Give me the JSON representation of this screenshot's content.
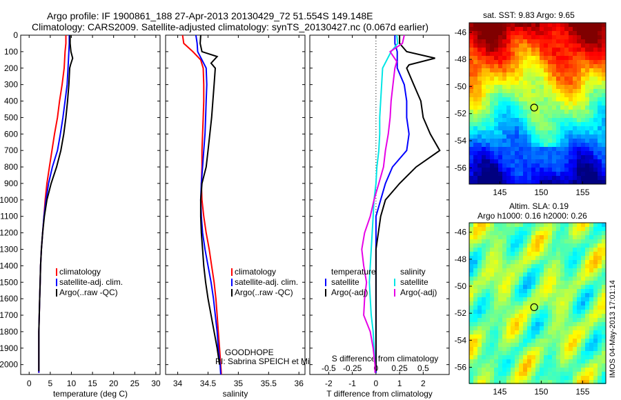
{
  "title": {
    "line1": "Argo profile: IF 1900861_188 27-Apr-2013 20130429_72 51.554S 149.148E",
    "line2": "Climatology: CARS2009. Satellite-adjusted climatology: synTS_20130427.nc (0.067d earlier)"
  },
  "colors": {
    "climatology": "#ff0000",
    "satellite": "#0000ff",
    "argo": "#000000",
    "sat_salinity": "#00e5e5",
    "argo_salinity": "#e600e6"
  },
  "chart_data": [
    {
      "type": "line",
      "xlabel": "temperature (deg C)",
      "xlim": [
        -2,
        31
      ],
      "ylim": [
        2060,
        0
      ],
      "x_ticks": [
        0,
        5,
        10,
        15,
        20,
        25,
        30
      ],
      "y_ticks": [
        0,
        100,
        200,
        300,
        400,
        500,
        600,
        700,
        800,
        900,
        1000,
        1100,
        1200,
        1300,
        1400,
        1500,
        1600,
        1700,
        1800,
        1900,
        2000
      ],
      "legend_position": "middle-right",
      "series": [
        {
          "name": "climatology",
          "color": "#ff0000",
          "points": [
            [
              8.7,
              0
            ],
            [
              8.7,
              50
            ],
            [
              8.5,
              100
            ],
            [
              8.3,
              200
            ],
            [
              7.8,
              300
            ],
            [
              7.2,
              400
            ],
            [
              6.7,
              500
            ],
            [
              6.0,
              600
            ],
            [
              5.4,
              700
            ],
            [
              4.8,
              800
            ],
            [
              4.2,
              900
            ],
            [
              3.8,
              1000
            ],
            [
              3.5,
              1100
            ],
            [
              3.2,
              1200
            ],
            [
              2.9,
              1300
            ],
            [
              2.7,
              1400
            ],
            [
              2.6,
              1500
            ],
            [
              2.5,
              1600
            ],
            [
              2.4,
              1700
            ],
            [
              2.3,
              1800
            ],
            [
              2.3,
              1900
            ],
            [
              2.3,
              2000
            ],
            [
              2.3,
              2050
            ]
          ]
        },
        {
          "name": "satellite-adj. clim.",
          "color": "#0000ff",
          "points": [
            [
              9.5,
              0
            ],
            [
              9.5,
              50
            ],
            [
              9.4,
              100
            ],
            [
              9.2,
              200
            ],
            [
              9.0,
              300
            ],
            [
              8.5,
              400
            ],
            [
              8.0,
              500
            ],
            [
              7.4,
              600
            ],
            [
              6.7,
              700
            ],
            [
              5.5,
              800
            ],
            [
              4.6,
              900
            ],
            [
              4.0,
              1000
            ],
            [
              3.5,
              1100
            ],
            [
              3.2,
              1200
            ],
            [
              2.9,
              1300
            ],
            [
              2.7,
              1400
            ],
            [
              2.6,
              1500
            ],
            [
              2.5,
              1600
            ],
            [
              2.4,
              1700
            ],
            [
              2.3,
              1800
            ],
            [
              2.3,
              1900
            ],
            [
              2.3,
              2000
            ],
            [
              2.3,
              2050
            ]
          ]
        },
        {
          "name": "Argo(..raw -QC)",
          "color": "#000000",
          "points": [
            [
              9.7,
              0
            ],
            [
              9.7,
              50
            ],
            [
              9.9,
              100
            ],
            [
              10.3,
              140
            ],
            [
              9.8,
              180
            ],
            [
              9.6,
              200
            ],
            [
              9.4,
              300
            ],
            [
              9.1,
              400
            ],
            [
              8.7,
              500
            ],
            [
              8.2,
              600
            ],
            [
              7.5,
              700
            ],
            [
              6.5,
              800
            ],
            [
              5.2,
              900
            ],
            [
              4.2,
              1000
            ],
            [
              3.6,
              1100
            ],
            [
              3.2,
              1200
            ],
            [
              2.9,
              1300
            ],
            [
              2.7,
              1400
            ],
            [
              2.6,
              1500
            ],
            [
              2.5,
              1600
            ],
            [
              2.4,
              1700
            ],
            [
              2.3,
              1800
            ],
            [
              2.3,
              1900
            ],
            [
              2.3,
              2000
            ],
            [
              2.3,
              2040
            ]
          ]
        }
      ]
    },
    {
      "type": "line",
      "xlabel": "salinity",
      "xlim": [
        33.8,
        36.1
      ],
      "ylim": [
        2060,
        0
      ],
      "x_ticks": [
        34,
        34.5,
        35,
        35.5,
        36
      ],
      "legend_position": "middle-right",
      "series": [
        {
          "name": "climatology",
          "color": "#ff0000",
          "points": [
            [
              34.08,
              0
            ],
            [
              34.1,
              50
            ],
            [
              34.25,
              100
            ],
            [
              34.38,
              150
            ],
            [
              34.42,
              200
            ],
            [
              34.43,
              300
            ],
            [
              34.43,
              400
            ],
            [
              34.42,
              500
            ],
            [
              34.41,
              600
            ],
            [
              34.4,
              700
            ],
            [
              34.4,
              800
            ],
            [
              34.39,
              900
            ],
            [
              34.4,
              1000
            ],
            [
              34.43,
              1100
            ],
            [
              34.47,
              1200
            ],
            [
              34.52,
              1300
            ],
            [
              34.56,
              1400
            ],
            [
              34.6,
              1500
            ],
            [
              34.63,
              1600
            ],
            [
              34.65,
              1700
            ],
            [
              34.67,
              1800
            ],
            [
              34.69,
              1900
            ],
            [
              34.71,
              2000
            ],
            [
              34.72,
              2060
            ]
          ]
        },
        {
          "name": "satellite-adj. clim.",
          "color": "#0000ff",
          "points": [
            [
              34.3,
              0
            ],
            [
              34.32,
              50
            ],
            [
              34.33,
              100
            ],
            [
              34.4,
              150
            ],
            [
              34.47,
              200
            ],
            [
              34.48,
              300
            ],
            [
              34.47,
              400
            ],
            [
              34.46,
              500
            ],
            [
              34.45,
              600
            ],
            [
              34.43,
              700
            ],
            [
              34.41,
              800
            ],
            [
              34.39,
              900
            ],
            [
              34.38,
              1000
            ],
            [
              34.39,
              1100
            ],
            [
              34.41,
              1200
            ],
            [
              34.45,
              1300
            ],
            [
              34.5,
              1400
            ],
            [
              34.55,
              1500
            ],
            [
              34.59,
              1600
            ],
            [
              34.62,
              1700
            ],
            [
              34.65,
              1800
            ],
            [
              34.67,
              1900
            ],
            [
              34.7,
              2000
            ],
            [
              34.71,
              2060
            ]
          ]
        },
        {
          "name": "Argo(..raw -QC)",
          "color": "#000000",
          "points": [
            [
              34.38,
              0
            ],
            [
              34.37,
              50
            ],
            [
              34.4,
              100
            ],
            [
              34.65,
              130
            ],
            [
              34.55,
              170
            ],
            [
              34.62,
              200
            ],
            [
              34.6,
              300
            ],
            [
              34.58,
              400
            ],
            [
              34.56,
              500
            ],
            [
              34.53,
              600
            ],
            [
              34.5,
              700
            ],
            [
              34.47,
              800
            ],
            [
              34.4,
              900
            ],
            [
              34.38,
              1000
            ],
            [
              34.38,
              1100
            ],
            [
              34.39,
              1200
            ],
            [
              34.41,
              1300
            ],
            [
              34.43,
              1400
            ],
            [
              34.46,
              1500
            ],
            [
              34.5,
              1600
            ],
            [
              34.55,
              1700
            ],
            [
              34.6,
              1800
            ],
            [
              34.65,
              1900
            ],
            [
              34.69,
              2000
            ]
          ]
        }
      ],
      "annotation": {
        "line1": "GOODHOPE",
        "line2": "PI: Sabrina SPEICH et Michel ARHAN"
      }
    },
    {
      "type": "line",
      "xlabel": "T difference from climatology",
      "top_xlabel": "S difference from climatology",
      "xlim": [
        -2.8,
        3.1
      ],
      "top_xlim": [
        -0.7,
        0.775
      ],
      "ylim": [
        2060,
        0
      ],
      "x_ticks": [
        -2,
        -1,
        0,
        1,
        2
      ],
      "top_ticks": [
        -0.5,
        -0.25,
        0,
        0.25,
        0.5
      ],
      "legend_groups": [
        {
          "title": "temperature",
          "items": [
            {
              "name": "satellite",
              "color": "#0000ff"
            },
            {
              "name": "Argo(-adj)",
              "color": "#000000"
            }
          ]
        },
        {
          "title": "salinity",
          "items": [
            {
              "name": "satellite",
              "color": "#00e5e5"
            },
            {
              "name": "Argo(-adj)",
              "color": "#e600e6"
            }
          ]
        }
      ],
      "series": [
        {
          "name": "temperature satellite",
          "axis": "bottom",
          "color": "#0000ff",
          "points": [
            [
              0.8,
              0
            ],
            [
              0.8,
              50
            ],
            [
              0.9,
              100
            ],
            [
              0.9,
              200
            ],
            [
              1.2,
              300
            ],
            [
              1.3,
              400
            ],
            [
              1.3,
              500
            ],
            [
              1.4,
              600
            ],
            [
              1.3,
              700
            ],
            [
              0.7,
              800
            ],
            [
              0.4,
              900
            ],
            [
              0.2,
              1000
            ],
            [
              0,
              1100
            ],
            [
              0,
              1300
            ],
            [
              0,
              1600
            ],
            [
              0,
              2000
            ],
            [
              0,
              2050
            ]
          ]
        },
        {
          "name": "temperature Argo(-adj)",
          "axis": "bottom",
          "color": "#000000",
          "points": [
            [
              1.0,
              0
            ],
            [
              1.0,
              50
            ],
            [
              1.3,
              100
            ],
            [
              2.5,
              140
            ],
            [
              1.4,
              180
            ],
            [
              1.3,
              200
            ],
            [
              1.6,
              300
            ],
            [
              1.9,
              400
            ],
            [
              2.0,
              500
            ],
            [
              2.3,
              600
            ],
            [
              2.7,
              700
            ],
            [
              1.7,
              800
            ],
            [
              1.0,
              900
            ],
            [
              0.4,
              1000
            ],
            [
              0.2,
              1100
            ],
            [
              0,
              1300
            ],
            [
              0,
              1600
            ],
            [
              0,
              2000
            ],
            [
              0,
              2040
            ]
          ]
        },
        {
          "name": "salinity satellite",
          "axis": "top",
          "color": "#00e5e5",
          "points": [
            [
              0.22,
              0
            ],
            [
              0.23,
              50
            ],
            [
              0.16,
              100
            ],
            [
              0.07,
              200
            ],
            [
              0.06,
              300
            ],
            [
              0.05,
              400
            ],
            [
              0.04,
              500
            ],
            [
              0.04,
              600
            ],
            [
              0.03,
              700
            ],
            [
              0.01,
              800
            ],
            [
              0.0,
              900
            ],
            [
              -0.02,
              1000
            ],
            [
              -0.03,
              1100
            ],
            [
              -0.04,
              1200
            ],
            [
              -0.05,
              1300
            ],
            [
              -0.06,
              1400
            ],
            [
              -0.07,
              1500
            ],
            [
              -0.06,
              1600
            ],
            [
              -0.05,
              1700
            ],
            [
              -0.03,
              1800
            ],
            [
              -0.02,
              1900
            ],
            [
              -0.01,
              2000
            ],
            [
              -0.01,
              2050
            ]
          ]
        },
        {
          "name": "salinity Argo(-adj)",
          "axis": "top",
          "color": "#e600e6",
          "points": [
            [
              0.3,
              0
            ],
            [
              0.28,
              50
            ],
            [
              0.15,
              100
            ],
            [
              0.22,
              160
            ],
            [
              0.2,
              200
            ],
            [
              0.18,
              300
            ],
            [
              0.16,
              400
            ],
            [
              0.15,
              500
            ],
            [
              0.13,
              600
            ],
            [
              0.1,
              700
            ],
            [
              0.08,
              800
            ],
            [
              0.03,
              900
            ],
            [
              -0.02,
              1000
            ],
            [
              -0.06,
              1100
            ],
            [
              -0.12,
              1200
            ],
            [
              -0.15,
              1300
            ],
            [
              -0.13,
              1400
            ],
            [
              -0.1,
              1500
            ],
            [
              -0.12,
              1600
            ],
            [
              -0.13,
              1700
            ],
            [
              -0.06,
              1800
            ],
            [
              -0.03,
              1900
            ],
            [
              -0.01,
              2000
            ],
            [
              -0.01,
              2050
            ]
          ]
        }
      ]
    }
  ],
  "maps": {
    "sst": {
      "title": "sat. SST: 9.83 Argo: 9.65",
      "lat_ticks": [
        -46,
        -48,
        -50,
        -52,
        -54,
        -56
      ],
      "lon_ticks": [
        145,
        150,
        155
      ],
      "argo_marker": {
        "lon": 149.148,
        "lat": -51.554
      }
    },
    "sla": {
      "title_line1": "Altim. SLA: 0.19",
      "title_line2": "Argo h1000: 0.16 h2000: 0.26",
      "lat_ticks": [
        -46,
        -48,
        -50,
        -52,
        -54,
        -56
      ],
      "lon_ticks": [
        145,
        150,
        155
      ],
      "argo_marker": {
        "lon": 149.148,
        "lat": -51.554
      }
    }
  },
  "credit": "IMOS 04-May-2013 17:01:14"
}
